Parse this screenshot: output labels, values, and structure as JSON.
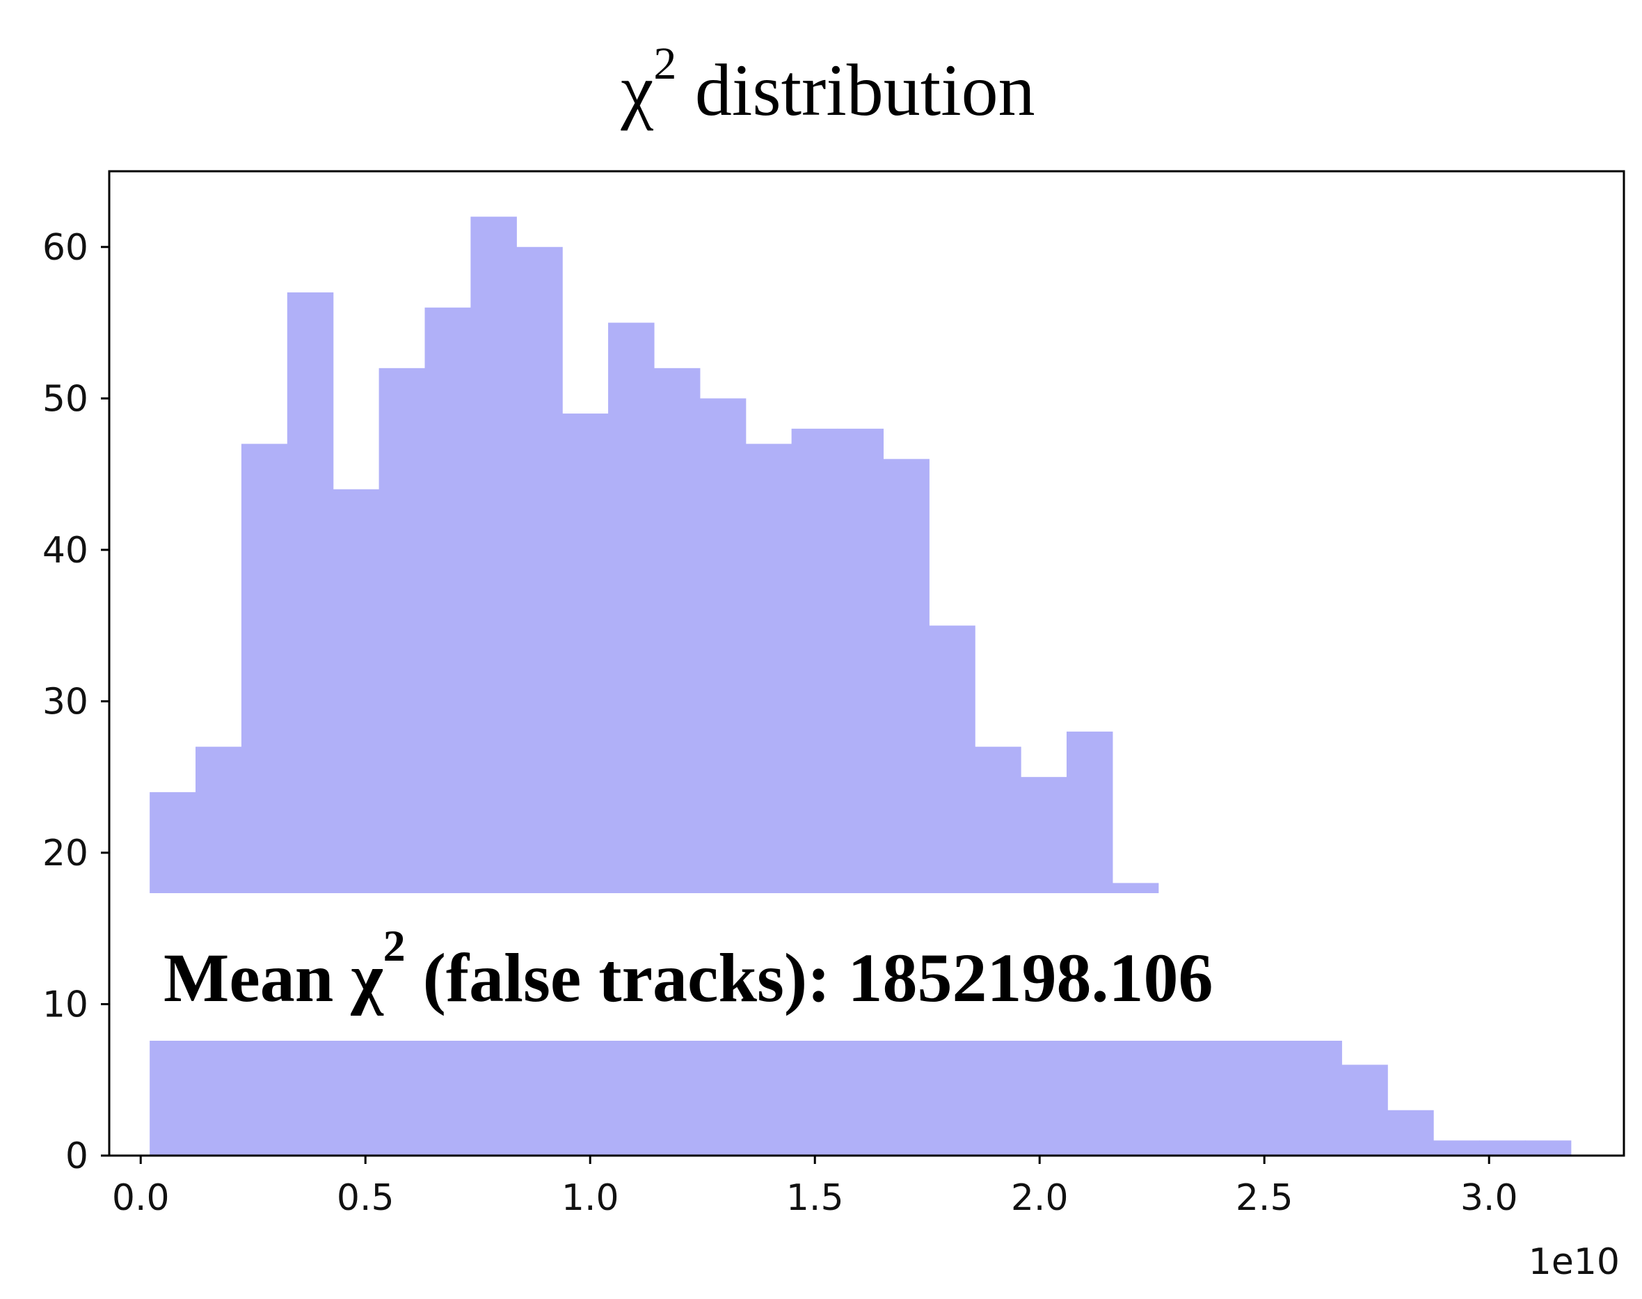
{
  "chart_data": {
    "type": "bar",
    "title_main": "χ",
    "title_sup": "2",
    "title_rest": " distribution",
    "xlabel": "",
    "ylabel": "",
    "x_offset_label": "1e10",
    "xlim": [
      -0.07,
      3.3
    ],
    "ylim": [
      0,
      65
    ],
    "xticks": [
      0.0,
      0.5,
      1.0,
      1.5,
      2.0,
      2.5,
      3.0
    ],
    "xtick_labels": [
      "0.0",
      "0.5",
      "1.0",
      "1.5",
      "2.0",
      "2.5",
      "3.0"
    ],
    "yticks": [
      0,
      10,
      20,
      30,
      40,
      50,
      60
    ],
    "ytick_labels": [
      "0",
      "10",
      "20",
      "30",
      "40",
      "50",
      "60"
    ],
    "bin_edges": [
      0.02,
      0.122,
      0.224,
      0.326,
      0.428,
      0.53,
      0.632,
      0.734,
      0.836,
      0.938,
      1.04,
      1.142,
      1.244,
      1.346,
      1.448,
      1.55,
      1.652,
      1.754,
      1.856,
      1.958,
      2.06,
      2.162,
      2.264,
      2.366,
      2.468,
      2.57,
      2.672,
      2.774,
      2.876,
      2.978,
      3.08,
      3.182
    ],
    "values": [
      24,
      27,
      47,
      57,
      44,
      52,
      56,
      62,
      60,
      49,
      55,
      52,
      50,
      47,
      48,
      48,
      46,
      35,
      27,
      25,
      28,
      18,
      12,
      11,
      10,
      8,
      6,
      3,
      1,
      1,
      1
    ],
    "bar_color": "#b0b0f8",
    "grid": false,
    "annotation": {
      "prefix": "Mean χ",
      "sup": "2",
      "suffix": " (false tracks): 1852198.106"
    }
  }
}
